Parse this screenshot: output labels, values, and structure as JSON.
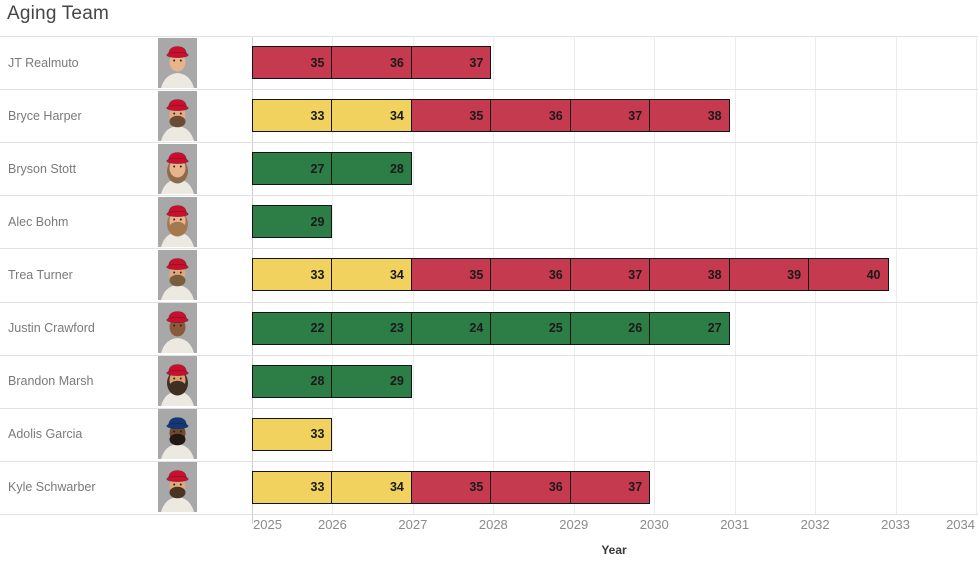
{
  "title": "Aging Team",
  "axis": {
    "label": "Year",
    "ticks": [
      "2025",
      "2026",
      "2027",
      "2028",
      "2029",
      "2030",
      "2031",
      "2032",
      "2033",
      "2034"
    ]
  },
  "colors": {
    "age_young_green": "#2d7d46",
    "age_prime_yellow": "#f2d25f",
    "age_old_red": "#c63a50",
    "bar_border": "#141414",
    "avatar_background": "#a8a8a8",
    "phillies_cap_red": "#c8102e",
    "rangers_cap_navy": "#12387a"
  },
  "avatars": [
    {
      "cap": "#c8102e",
      "skin": "#e8b48c",
      "beard": null,
      "hair": null
    },
    {
      "cap": "#c8102e",
      "skin": "#e3ac84",
      "beard": "#6b4a33",
      "hair": null
    },
    {
      "cap": "#c8102e",
      "skin": "#e8b48c",
      "beard": null,
      "hair": "#8d6b4a"
    },
    {
      "cap": "#c8102e",
      "skin": "#e8b48c",
      "beard": "#a5794f",
      "hair": "#a5794f"
    },
    {
      "cap": "#c8102e",
      "skin": "#dfa87e",
      "beard": "#7a5c3f",
      "hair": null
    },
    {
      "cap": "#c8102e",
      "skin": "#8a5a3a",
      "beard": null,
      "hair": null
    },
    {
      "cap": "#c8102e",
      "skin": "#d9a074",
      "beard": "#3e2f23",
      "hair": "#3e2f23"
    },
    {
      "cap": "#12387a",
      "skin": "#6e4a30",
      "beard": "#221914",
      "hair": null
    },
    {
      "cap": "#c8102e",
      "skin": "#e0a87e",
      "beard": "#4a3424",
      "hair": null
    }
  ],
  "chart_data": {
    "type": "bar",
    "subtype": "horizontal-gantt-age-timeline",
    "title": "Aging Team",
    "xlabel": "Year",
    "ylabel": "",
    "x_range": [
      2025,
      2034
    ],
    "x_ticks": [
      2025,
      2026,
      2027,
      2028,
      2029,
      2030,
      2031,
      2032,
      2033,
      2034
    ],
    "grid": "vertical-light",
    "legend": "none",
    "color_rule": {
      "green": "age <= 29",
      "yellow": "age 30-34",
      "red": "age >= 35"
    },
    "rows": [
      {
        "player": "JT Realmuto",
        "start_year": 2025,
        "end_year": 2028,
        "ages": [
          35,
          36,
          37
        ]
      },
      {
        "player": "Bryce Harper",
        "start_year": 2025,
        "end_year": 2031,
        "ages": [
          33,
          34,
          35,
          36,
          37,
          38
        ]
      },
      {
        "player": "Bryson Stott",
        "start_year": 2025,
        "end_year": 2027,
        "ages": [
          27,
          28
        ]
      },
      {
        "player": "Alec Bohm",
        "start_year": 2025,
        "end_year": 2026,
        "ages": [
          29
        ]
      },
      {
        "player": "Trea Turner",
        "start_year": 2025,
        "end_year": 2033,
        "ages": [
          33,
          34,
          35,
          36,
          37,
          38,
          39,
          40
        ]
      },
      {
        "player": "Justin Crawford",
        "start_year": 2025,
        "end_year": 2031,
        "ages": [
          22,
          23,
          24,
          25,
          26,
          27
        ]
      },
      {
        "player": "Brandon Marsh",
        "start_year": 2025,
        "end_year": 2027,
        "ages": [
          28,
          29
        ]
      },
      {
        "player": "Adolis Garcia",
        "start_year": 2025,
        "end_year": 2026,
        "ages": [
          33
        ]
      },
      {
        "player": "Kyle Schwarber",
        "start_year": 2025,
        "end_year": 2030,
        "ages": [
          33,
          34,
          35,
          36,
          37
        ]
      }
    ]
  }
}
